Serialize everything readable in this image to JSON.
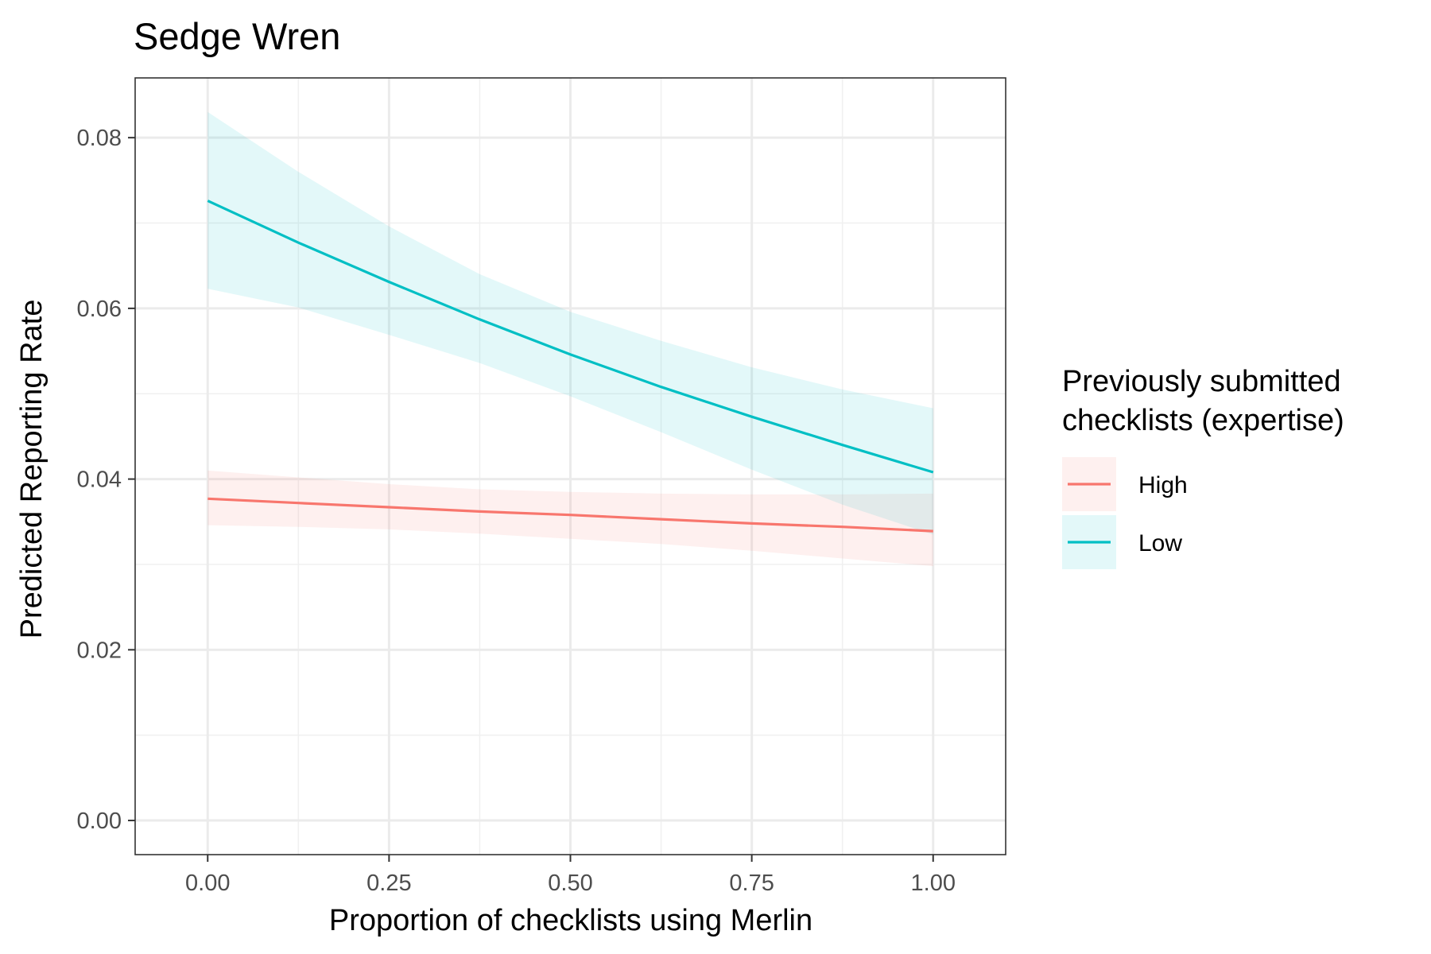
{
  "chart_data": {
    "type": "line",
    "title": "Sedge Wren",
    "xlabel": "Proportion of checklists using Merlin",
    "ylabel": "Predicted Reporting Rate",
    "xlim": [
      -0.1,
      1.1
    ],
    "ylim": [
      -0.004,
      0.087
    ],
    "x_ticks": [
      0.0,
      0.25,
      0.5,
      0.75,
      1.0
    ],
    "x_tick_labels": [
      "0.00",
      "0.25",
      "0.50",
      "0.75",
      "1.00"
    ],
    "y_ticks": [
      0.0,
      0.02,
      0.04,
      0.06,
      0.08
    ],
    "y_tick_labels": [
      "0.00",
      "0.02",
      "0.04",
      "0.06",
      "0.08"
    ],
    "grid": true,
    "legend": {
      "title_lines": [
        "Previously submitted",
        "checklists (expertise)"
      ],
      "placement": "right"
    },
    "x": [
      0.0,
      0.125,
      0.25,
      0.375,
      0.5,
      0.625,
      0.75,
      0.875,
      1.0
    ],
    "series": [
      {
        "name": "High",
        "color": "#F8766D",
        "ribbon_color": "#FFE2E0",
        "values": [
          0.0377,
          0.0372,
          0.0367,
          0.0362,
          0.0358,
          0.0353,
          0.0348,
          0.0344,
          0.0339
        ],
        "lower": [
          0.0346,
          0.0344,
          0.0341,
          0.0336,
          0.033,
          0.0324,
          0.0316,
          0.0307,
          0.0298
        ],
        "upper": [
          0.041,
          0.0402,
          0.0394,
          0.0388,
          0.0385,
          0.0383,
          0.0382,
          0.0382,
          0.0383
        ]
      },
      {
        "name": "Low",
        "color": "#00BFC4",
        "ribbon_color": "#DDF5F6",
        "values": [
          0.0726,
          0.0677,
          0.0631,
          0.0587,
          0.0546,
          0.0508,
          0.0473,
          0.044,
          0.0408
        ],
        "lower": [
          0.0623,
          0.0601,
          0.0569,
          0.0536,
          0.0497,
          0.0455,
          0.0411,
          0.037,
          0.0335
        ],
        "upper": [
          0.083,
          0.076,
          0.0696,
          0.064,
          0.0596,
          0.0562,
          0.0531,
          0.0505,
          0.0483
        ]
      }
    ]
  }
}
